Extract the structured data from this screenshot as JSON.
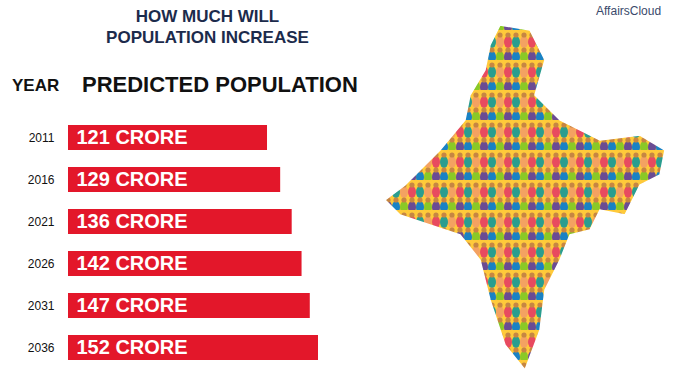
{
  "chart_data": {
    "type": "bar",
    "orientation": "horizontal",
    "title": "HOW MUCH WILL POPULATION INCREASE",
    "y_label": "YEAR",
    "x_label": "PREDICTED POPULATION",
    "logo": "AffairsCloud",
    "categories": [
      "2011",
      "2016",
      "2021",
      "2026",
      "2031",
      "2036"
    ],
    "values": [
      121,
      129,
      136,
      142,
      147,
      152
    ],
    "value_labels": [
      "121 CRORE",
      "129 CRORE",
      "136 CRORE",
      "142 CRORE",
      "147 CRORE",
      "152 CRORE"
    ],
    "data_labels": true,
    "tick_labels": "y",
    "grid": false,
    "color": "#e3172a"
  }
}
